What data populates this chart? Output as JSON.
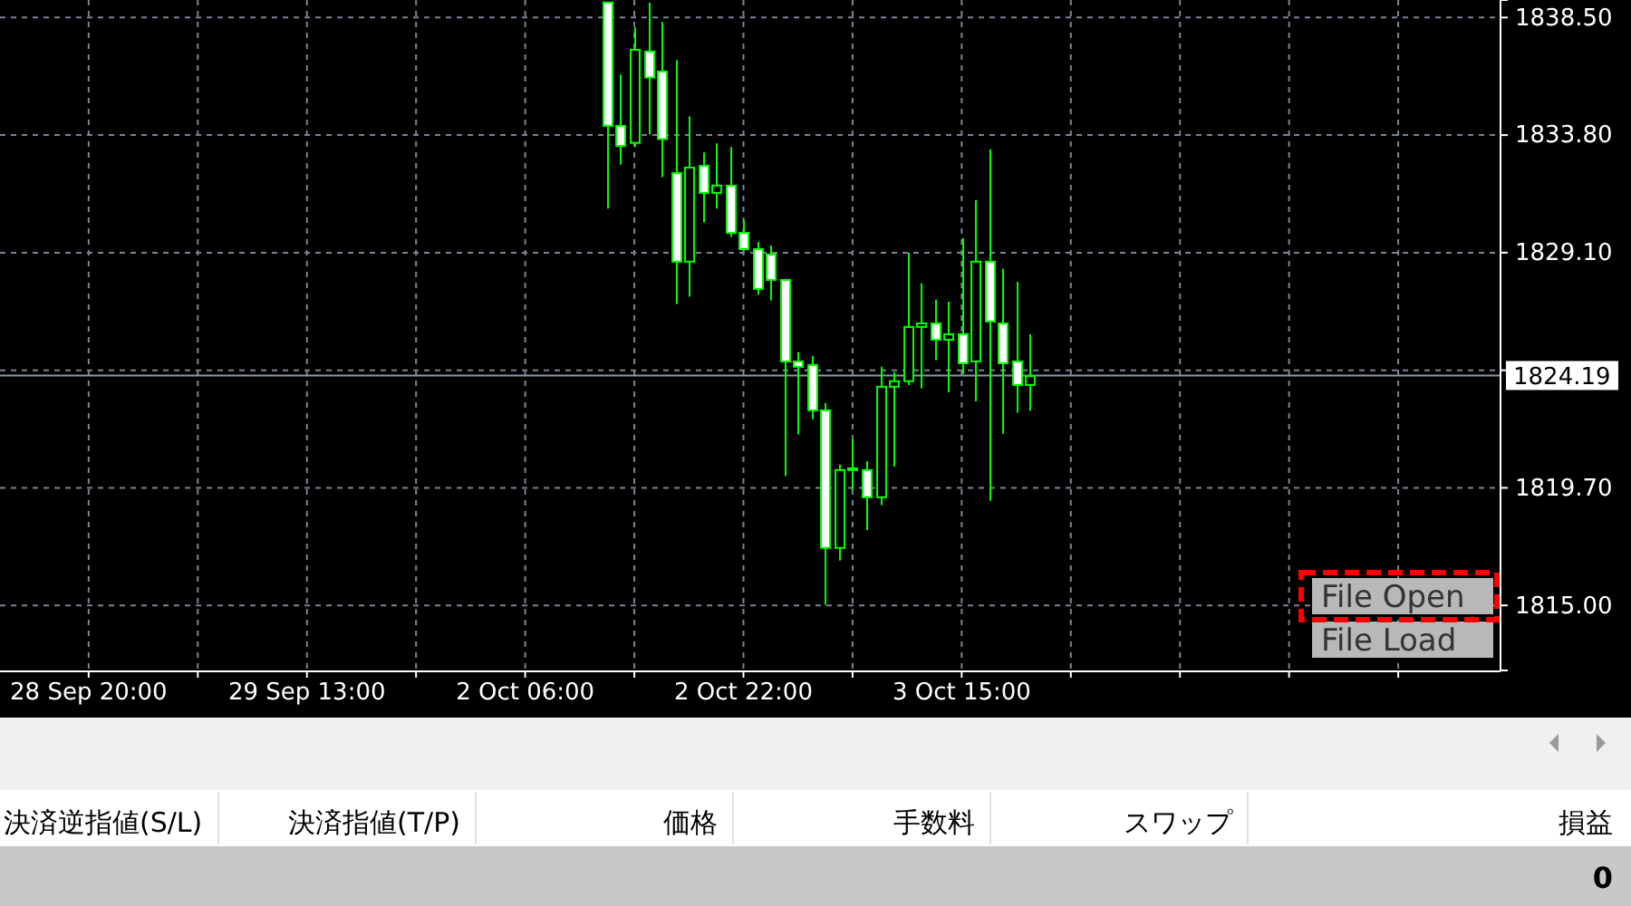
{
  "chart_data": {
    "type": "candlestick",
    "categories": [
      null,
      null,
      null,
      null,
      null,
      null,
      "28 Sep 20:00",
      null,
      null,
      null,
      null,
      null,
      null,
      null,
      null,
      null,
      null,
      null,
      null,
      null,
      null,
      null,
      "29 Sep 13:00",
      null,
      null,
      null,
      null,
      null,
      null,
      null,
      null,
      null,
      null,
      null,
      null,
      null,
      null,
      null,
      "2 Oct 06:00",
      null,
      null,
      null,
      null,
      null,
      null,
      null,
      null,
      null,
      null,
      null,
      null,
      null,
      null,
      null,
      "2 Oct 22:00",
      null,
      null,
      null,
      null,
      null,
      null,
      null,
      null,
      null,
      null,
      null,
      null,
      null,
      null,
      null,
      "3 Oct 15:00",
      null,
      null,
      null,
      null,
      null,
      null,
      null,
      null,
      null,
      null,
      null,
      null,
      null,
      null,
      null,
      null,
      null,
      null,
      null,
      null,
      null,
      null,
      null,
      null,
      null,
      null,
      null,
      null,
      null,
      null,
      null,
      null,
      null,
      null,
      null,
      null,
      null,
      null,
      null
    ],
    "series": [
      {
        "color": "#00ff00",
        "ohlc": [
          null,
          null,
          null,
          null,
          null,
          null,
          null,
          null,
          null,
          null,
          null,
          null,
          null,
          null,
          null,
          null,
          null,
          null,
          null,
          null,
          null,
          null,
          null,
          null,
          null,
          null,
          null,
          null,
          null,
          null,
          null,
          null,
          null,
          null,
          null,
          null,
          null,
          null,
          null,
          null,
          null,
          null,
          null,
          null,
          [
            1839.1,
            1839.1,
            1830.86,
            1834.17
          ],
          [
            1834.17,
            1836.22,
            1832.62,
            1833.37
          ],
          [
            1833.49,
            1838.1,
            1833.32,
            1837.21
          ],
          [
            1837.14,
            1839.1,
            1833.83,
            1836.1
          ],
          [
            1836.34,
            1838.32,
            1832.12,
            1833.64
          ],
          [
            1832.28,
            1836.8,
            1827.05,
            1828.74
          ],
          [
            1828.74,
            1834.55,
            1827.34,
            1832.5
          ],
          [
            1832.57,
            1833.11,
            1830.31,
            1831.49
          ],
          [
            1831.49,
            1833.47,
            1830.86,
            1831.78
          ],
          [
            1831.78,
            1833.32,
            1829.73,
            1829.89
          ],
          [
            1829.89,
            1830.4,
            1829.17,
            1829.24
          ],
          [
            1829.24,
            1829.53,
            1827.41,
            1827.65
          ],
          [
            1829.03,
            1829.39,
            1827.19,
            1828.01
          ],
          [
            1828.01,
            1828.01,
            1820.17,
            1824.75
          ],
          [
            1824.75,
            1825.12,
            1821.83,
            1824.54
          ],
          [
            1824.61,
            1824.97,
            1822.44,
            1822.8
          ],
          [
            1822.8,
            1823.09,
            1815.03,
            1817.3
          ],
          [
            1817.3,
            1820.63,
            1816.79,
            1820.41
          ],
          [
            1820.48,
            1821.64,
            1819.61,
            1820.48
          ],
          [
            1820.41,
            1820.77,
            1818.0,
            1819.32
          ],
          [
            1819.32,
            1824.54,
            1819.01,
            1823.74
          ],
          [
            1823.74,
            1824.32,
            1820.55,
            1823.96
          ],
          [
            1823.96,
            1829.1,
            1823.81,
            1826.13
          ],
          [
            1826.13,
            1827.87,
            1823.67,
            1826.27
          ],
          [
            1826.27,
            1827.22,
            1824.8,
            1825.62
          ],
          [
            1825.62,
            1827.14,
            1823.52,
            1825.84
          ],
          [
            1825.84,
            1829.68,
            1824.25,
            1824.68
          ],
          [
            1824.75,
            1831.2,
            1823.16,
            1828.74
          ],
          [
            1828.74,
            1833.23,
            1819.18,
            1826.35
          ],
          [
            1826.27,
            1828.45,
            1821.86,
            1824.68
          ],
          [
            1824.75,
            1827.94,
            1822.7,
            1823.81
          ],
          [
            1823.81,
            1825.84,
            1822.78,
            1824.17
          ],
          null,
          null,
          null,
          null,
          null,
          null,
          null,
          null,
          null,
          null,
          null,
          null,
          null,
          null,
          null,
          null,
          null,
          null,
          null,
          null,
          null,
          null,
          null,
          null,
          null,
          null,
          null,
          null,
          null,
          null,
          null,
          null,
          null,
          null
        ]
      }
    ],
    "ylim": [
      1812.4,
      1839.2
    ],
    "yticks": [
      {
        "value": 1815,
        "label": "1815.00"
      },
      {
        "value": 1819.7,
        "label": "1819.70"
      },
      {
        "value": 1824.4,
        "label": null
      },
      {
        "value": 1829.1,
        "label": "1829.10"
      },
      {
        "value": 1833.8,
        "label": "1833.80"
      },
      {
        "value": 1838.5,
        "label": "1838.50"
      }
    ],
    "grid": true,
    "ref_lines": [
      {
        "axis": "y",
        "value": 1824.19,
        "label": "1824.19",
        "color": "#8899aa"
      }
    ],
    "annotations": [
      "File Open",
      "File Load",
      "決済逆指値(S/L)",
      "決済指値(T/P)",
      "価格",
      "手数料",
      "スワップ",
      "損益",
      "0"
    ]
  }
}
